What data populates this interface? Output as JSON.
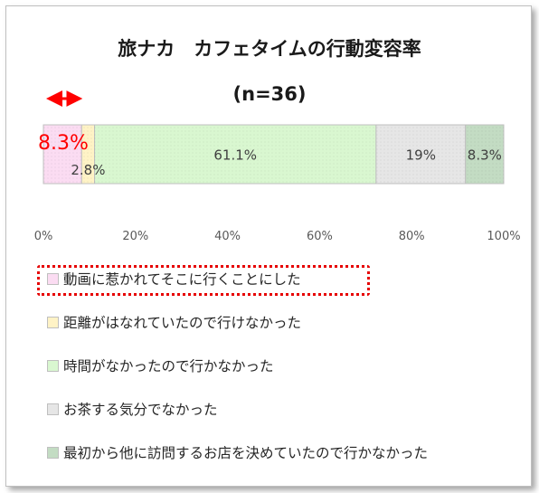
{
  "chart_data": {
    "type": "bar",
    "orientation": "horizontal-stacked-100",
    "title": "旅ナカ　カフェタイムの行動変容率",
    "subtitle": "(n=36)",
    "xlim": [
      0,
      100
    ],
    "x_ticks": [
      "0%",
      "20%",
      "40%",
      "60%",
      "80%",
      "100%"
    ],
    "series": [
      {
        "name": "動画に惹かれてそこに行くことにした",
        "value": 8.3,
        "label": "8.3%",
        "color": "#fbdcf2"
      },
      {
        "name": "距離がはなれていたので行けなかった",
        "value": 2.8,
        "label": "2.8%",
        "color": "#fff3c6"
      },
      {
        "name": "時間がなかったので行かなかった",
        "value": 61.1,
        "label": "61.1%",
        "color": "#d9f7d0"
      },
      {
        "name": "お茶する気分でなかった",
        "value": 19.4,
        "label": "19%",
        "color": "#e6e6e6"
      },
      {
        "name": "最初から他に訪問するお店を決めていたので行かなかった",
        "value": 8.3,
        "label": "8.3%",
        "color": "#c3dcc3"
      }
    ],
    "grid": false,
    "legend_position": "bottom",
    "highlight_series": 0,
    "highlight_color": "#ff0000"
  }
}
